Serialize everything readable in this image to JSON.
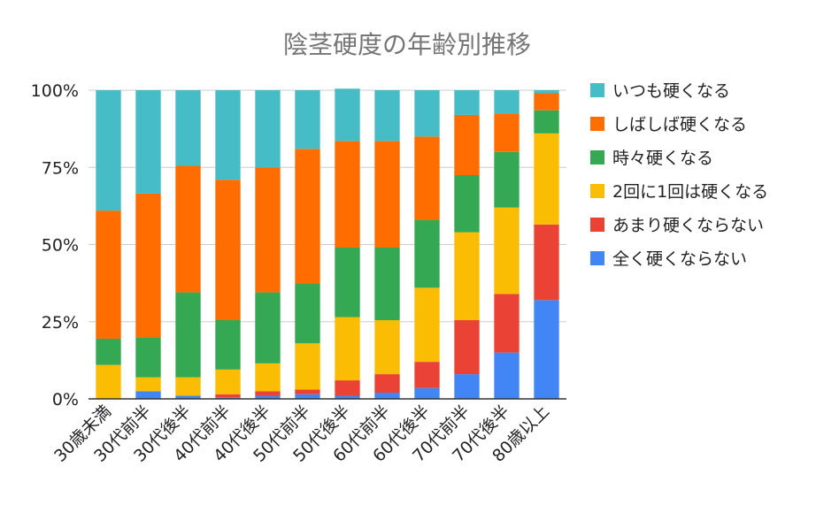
{
  "chart_data": {
    "type": "bar",
    "stacked": "percent",
    "title": "陰茎硬度の年齢別推移",
    "xlabel": "",
    "ylabel": "",
    "ylim": [
      0,
      100
    ],
    "yticks": [
      "0%",
      "25%",
      "50%",
      "75%",
      "100%"
    ],
    "grid": "horizontal",
    "legend_position": "right",
    "categories": [
      "30歳未満",
      "30代前半",
      "30代後半",
      "40代前半",
      "40代後半",
      "50代前半",
      "50代後半",
      "60代前半",
      "60代後半",
      "70代前半",
      "70代後半",
      "80歳以上"
    ],
    "series": [
      {
        "name": "全く硬くならない",
        "color": "#4285f4",
        "values": [
          0,
          2.5,
          1,
          0.5,
          1,
          1.5,
          1,
          2,
          3.5,
          8,
          15,
          32
        ]
      },
      {
        "name": "あまり硬くならない",
        "color": "#ea4335",
        "values": [
          0,
          0,
          0,
          1,
          1.5,
          1.5,
          5,
          6,
          8.5,
          17.5,
          19,
          24.5
        ]
      },
      {
        "name": "2回に1回は硬くなる",
        "color": "#fbbc04",
        "values": [
          11,
          4.5,
          6,
          8,
          9,
          15,
          20.5,
          17.5,
          24,
          28.5,
          28,
          29.5
        ]
      },
      {
        "name": "時々硬くなる",
        "color": "#34a853",
        "values": [
          8.5,
          13,
          27.5,
          16,
          23,
          19.5,
          22.5,
          23.5,
          22,
          18.5,
          18,
          7.5
        ]
      },
      {
        "name": "しばしば硬くなる",
        "color": "#ff6d01",
        "values": [
          41.5,
          46.5,
          41,
          45.5,
          40.5,
          43.5,
          34.5,
          34.5,
          27,
          19.5,
          12.5,
          5.5
        ]
      },
      {
        "name": "いつも硬くなる",
        "color": "#46bdc6",
        "values": [
          39,
          33.5,
          24.5,
          29,
          25,
          19,
          17,
          16.5,
          15,
          8,
          7.5,
          1
        ]
      }
    ]
  }
}
